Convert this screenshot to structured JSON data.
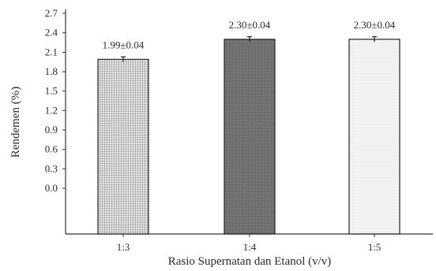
{
  "chart_data": {
    "type": "bar",
    "categories": [
      "1:3",
      "1:4",
      "1:5"
    ],
    "values": [
      1.99,
      2.3,
      2.3
    ],
    "errors": [
      0.04,
      0.04,
      0.04
    ],
    "data_labels": [
      "1.99±0.04",
      "2.30±0.04",
      "2.30±0.04"
    ],
    "yticks": [
      "0.0",
      "0.3",
      "0.6",
      "0.9",
      "1.2",
      "1.5",
      "1.8",
      "2.1",
      "2.4",
      "2.7"
    ],
    "ylabel": "Rendemen (%)",
    "xlabel": "Rasio Supernatan dan Etanol (v/v)",
    "ylim": [
      0,
      2.7
    ],
    "grid": false,
    "bar_fills": [
      "light-hatched",
      "dark-gray",
      "light-gray"
    ]
  },
  "colors": {
    "bar_light_hatched": "#e4e4e4",
    "bar_dark": "#7b7b7b",
    "bar_light": "#eeeeee",
    "axis": "#333333"
  }
}
